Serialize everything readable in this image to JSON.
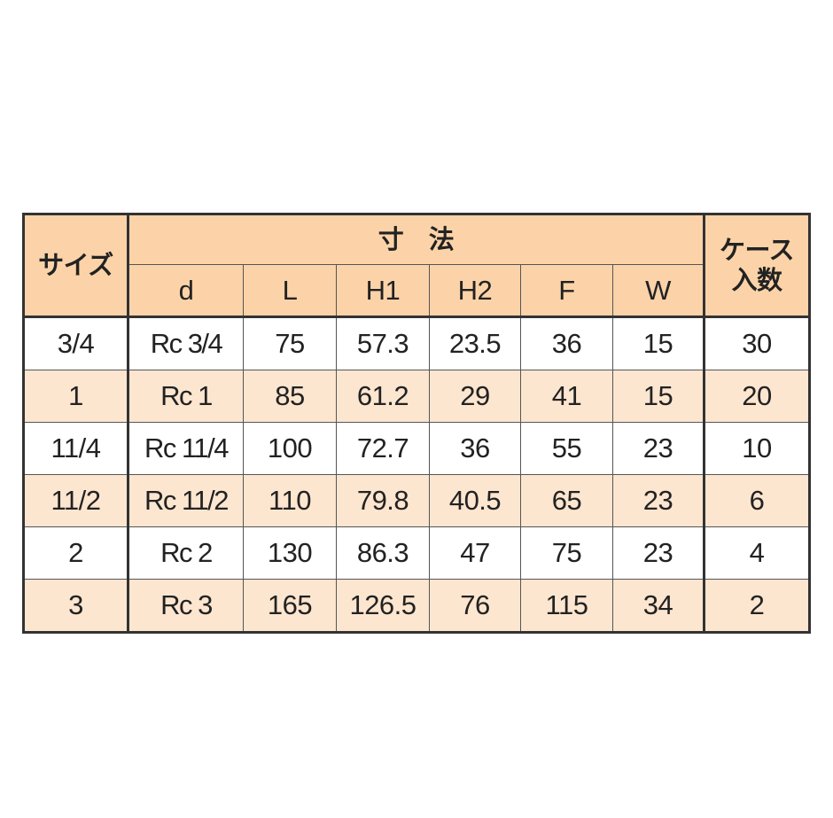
{
  "header": {
    "size": "サイズ",
    "dimensions": "寸　法",
    "case_qty_line1": "ケース",
    "case_qty_line2": "入数",
    "columns": [
      "d",
      "L",
      "H1",
      "H2",
      "F",
      "W"
    ]
  },
  "rows": [
    {
      "size": "3/4",
      "d": "Rc 3/4",
      "L": "75",
      "H1": "57.3",
      "H2": "23.5",
      "F": "36",
      "W": "15",
      "case": "30"
    },
    {
      "size": "1",
      "d": "Rc 1",
      "L": "85",
      "H1": "61.2",
      "H2": "29",
      "F": "41",
      "W": "15",
      "case": "20"
    },
    {
      "size": "11/4",
      "d": "Rc 11/4",
      "L": "100",
      "H1": "72.7",
      "H2": "36",
      "F": "55",
      "W": "23",
      "case": "10"
    },
    {
      "size": "11/2",
      "d": "Rc 11/2",
      "L": "110",
      "H1": "79.8",
      "H2": "40.5",
      "F": "65",
      "W": "23",
      "case": "6"
    },
    {
      "size": "2",
      "d": "Rc 2",
      "L": "130",
      "H1": "86.3",
      "H2": "47",
      "F": "75",
      "W": "23",
      "case": "4"
    },
    {
      "size": "3",
      "d": "Rc 3",
      "L": "165",
      "H1": "126.5",
      "H2": "76",
      "F": "115",
      "W": "34",
      "case": "2"
    }
  ],
  "colors": {
    "header_bg": "#fcd3a8",
    "alt_row_bg": "#fde6d0",
    "border": "#333333"
  }
}
